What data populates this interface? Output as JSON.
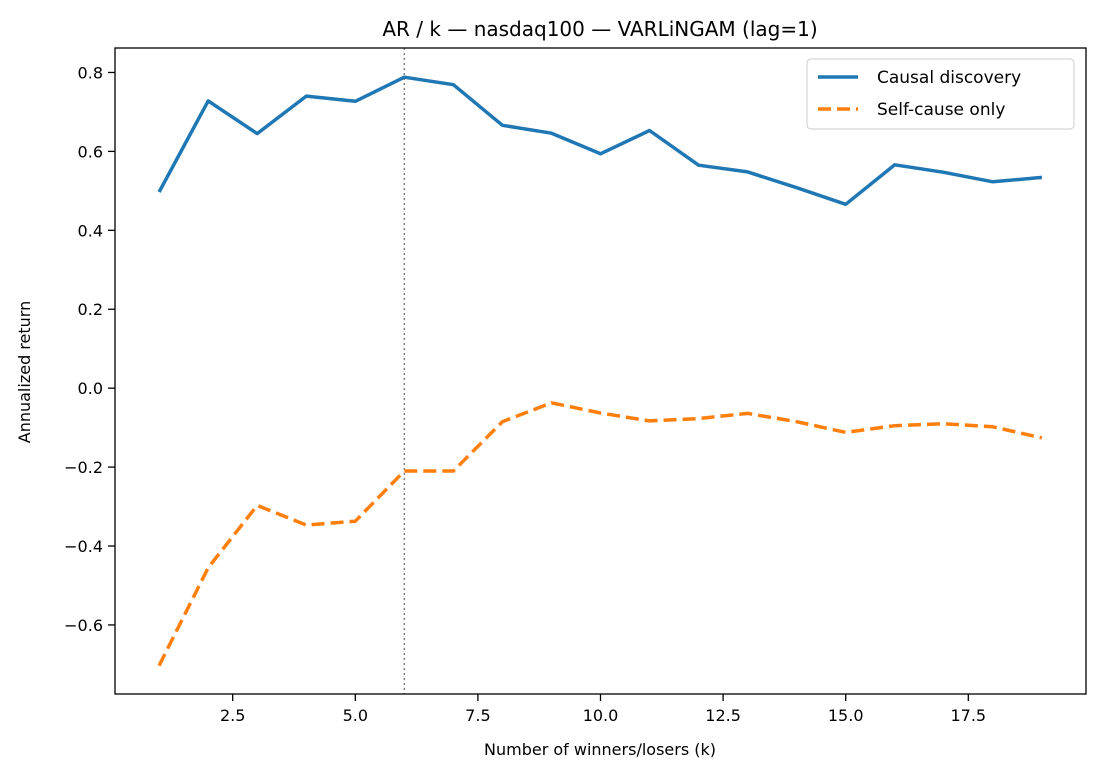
{
  "chart_data": {
    "type": "line",
    "title": "AR / k — nasdaq100 — VARLiNGAM (lag=1)",
    "xlabel": "Number of winners/losers (k)",
    "ylabel": "Annualized return",
    "xlim": [
      0.1,
      19.9
    ],
    "ylim": [
      -0.775,
      0.862
    ],
    "xticks": [
      2.5,
      5.0,
      7.5,
      10.0,
      12.5,
      15.0,
      17.5
    ],
    "xtick_labels": [
      "2.5",
      "5.0",
      "7.5",
      "10.0",
      "12.5",
      "15.0",
      "17.5"
    ],
    "yticks": [
      -0.6,
      -0.4,
      -0.2,
      0.0,
      0.2,
      0.4,
      0.6,
      0.8
    ],
    "ytick_labels": [
      "−0.6",
      "−0.4",
      "−0.2",
      "0.0",
      "0.2",
      "0.4",
      "0.6",
      "0.8"
    ],
    "grid": false,
    "legend_position": "top-right",
    "vline": {
      "x": 6,
      "color": "#808080",
      "style": "dotted"
    },
    "x": [
      1,
      2,
      3,
      4,
      5,
      6,
      7,
      8,
      9,
      10,
      11,
      12,
      13,
      14,
      15,
      16,
      17,
      18,
      19
    ],
    "series": [
      {
        "name": "Causal discovery",
        "color": "#1f77b4",
        "style": "solid",
        "values": [
          0.497,
          0.728,
          0.645,
          0.74,
          0.727,
          0.788,
          0.769,
          0.666,
          0.646,
          0.594,
          0.653,
          0.565,
          0.548,
          0.508,
          0.466,
          0.566,
          0.547,
          0.523,
          0.534
        ]
      },
      {
        "name": "Self-cause only",
        "color": "#ff7f0e",
        "style": "dashed",
        "values": [
          -0.703,
          -0.455,
          -0.297,
          -0.347,
          -0.337,
          -0.21,
          -0.21,
          -0.085,
          -0.037,
          -0.063,
          -0.083,
          -0.077,
          -0.064,
          -0.085,
          -0.112,
          -0.095,
          -0.09,
          -0.098,
          -0.126
        ]
      }
    ]
  }
}
